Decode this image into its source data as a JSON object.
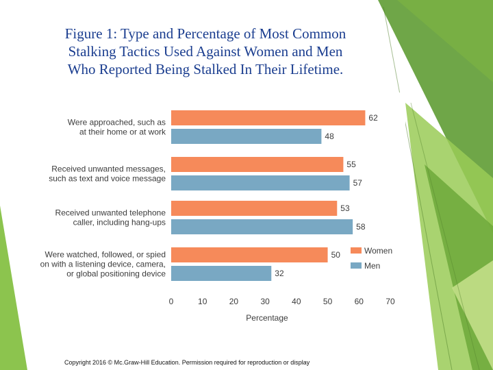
{
  "slide": {
    "title_lines": [
      "Figure 1: Type and Percentage of Most Common",
      "Stalking Tactics Used Against Women and Men",
      "Who Reported Being Stalked In Their Lifetime."
    ],
    "copyright": "Copyright 2016 © Mc.Graw-Hill Education. Permission required for reproduction or display"
  },
  "colors": {
    "women": "#f68a5a",
    "men": "#79a8c3",
    "accent_dark": "#4f9a2a",
    "accent_light": "#a6d060",
    "title": "#1a3d8f"
  },
  "chart_data": {
    "type": "bar",
    "orientation": "horizontal",
    "categories": [
      [
        "Were approached, such as",
        "at their home or at work"
      ],
      [
        "Received unwanted messages,",
        "such as text and voice message"
      ],
      [
        "Received unwanted telephone",
        "caller, including hang-ups"
      ],
      [
        "Were watched, followed, or spied",
        "on with a listening device, camera,",
        "or global positioning device"
      ]
    ],
    "series": [
      {
        "name": "Women",
        "values": [
          62,
          55,
          53,
          50
        ]
      },
      {
        "name": "Men",
        "values": [
          48,
          57,
          58,
          32
        ]
      }
    ],
    "xlabel": "Percentage",
    "xlim": [
      0,
      70
    ],
    "xticks": [
      0,
      10,
      20,
      30,
      40,
      50,
      60,
      70
    ],
    "legend_position": "right"
  }
}
